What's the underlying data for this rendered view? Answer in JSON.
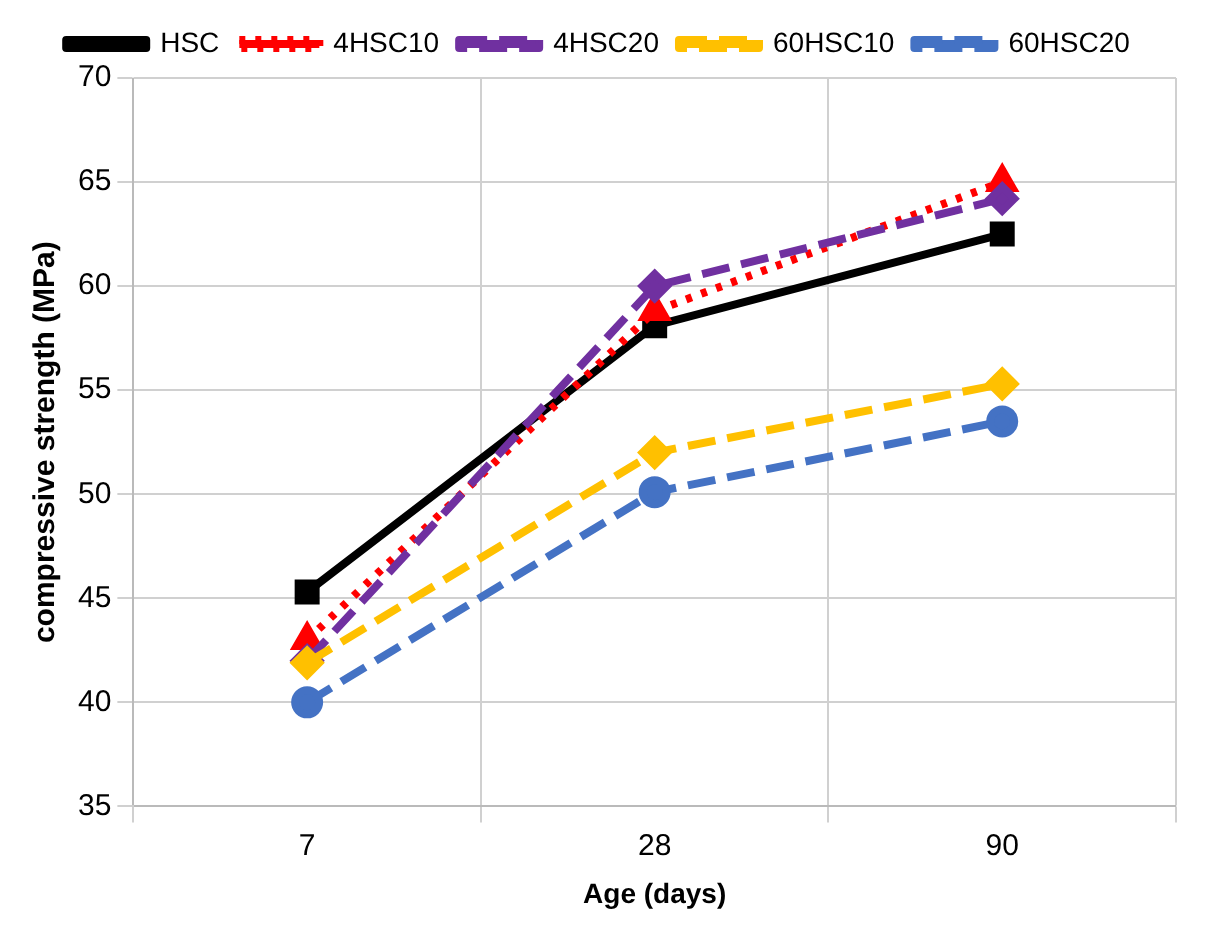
{
  "chart_data": {
    "type": "line",
    "xlabel": "Age (days)",
    "ylabel": "compressive strength (MPa)",
    "categories": [
      "7",
      "28",
      "90"
    ],
    "series": [
      {
        "name": "HSC",
        "color": "#000000",
        "values": [
          45.3,
          58.1,
          62.5
        ],
        "marker": "square",
        "line_style": "solid"
      },
      {
        "name": "4HSC10",
        "color": "#ff0000",
        "values": [
          43,
          58.8,
          65
        ],
        "marker": "triangle",
        "line_style": "dotted"
      },
      {
        "name": "4HSC20",
        "color": "#7030a0",
        "values": [
          42,
          60,
          64.2
        ],
        "marker": "diamond",
        "line_style": "dashed"
      },
      {
        "name": "60HSC10",
        "color": "#ffc000",
        "values": [
          41.9,
          52,
          55.3
        ],
        "marker": "diamond",
        "line_style": "dashed"
      },
      {
        "name": "60HSC20",
        "color": "#4472c4",
        "values": [
          40,
          50.1,
          53.5
        ],
        "marker": "circle",
        "line_style": "dashed"
      }
    ],
    "ylim": [
      35,
      70
    ],
    "yticks": [
      35,
      40,
      45,
      50,
      55,
      60,
      65,
      70
    ],
    "grid": true,
    "legend": "top"
  }
}
